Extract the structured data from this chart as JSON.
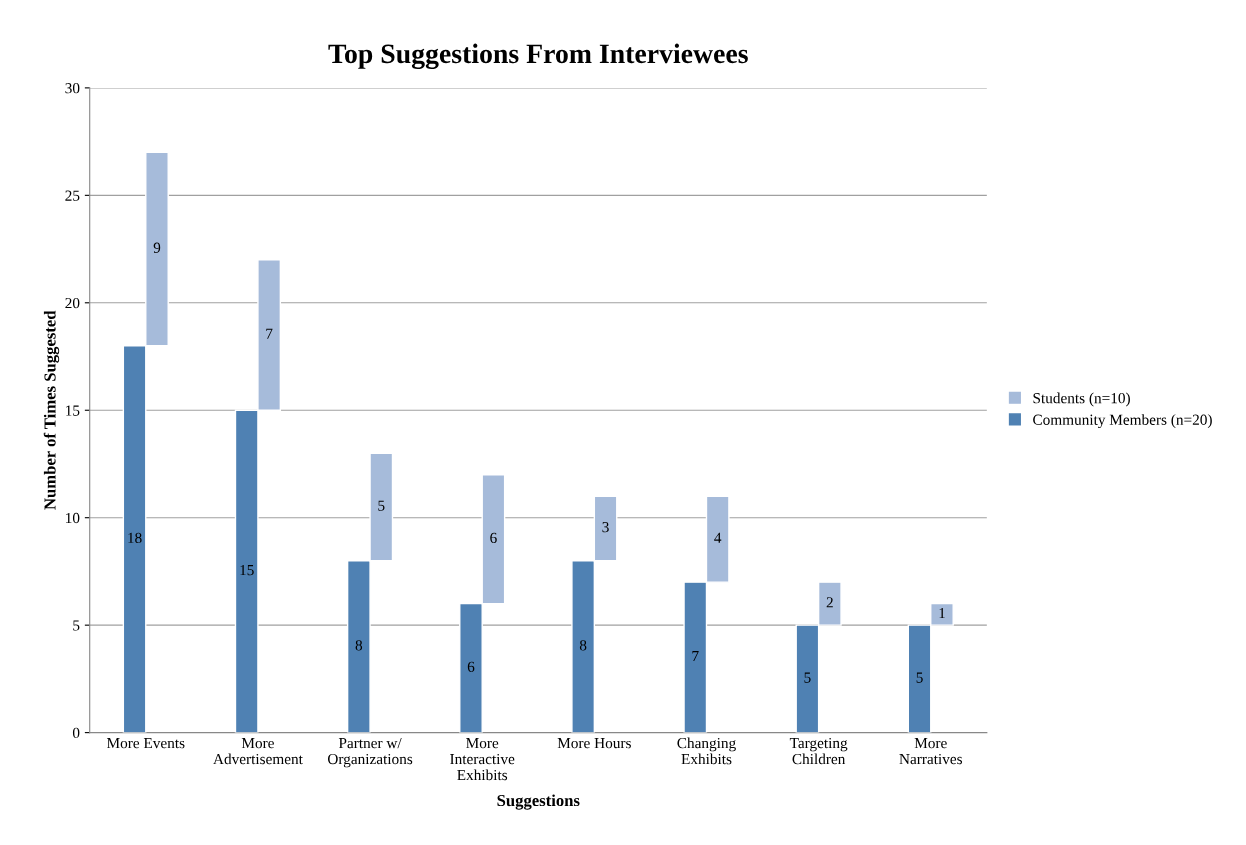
{
  "chart_data": {
    "type": "bar",
    "title": "Top Suggestions From Interviewees",
    "xlabel": "Suggestions",
    "ylabel": "Number of Times Suggested",
    "categories": [
      "More Events",
      "More\nAdvertisement",
      "Partner w/\nOrganizations",
      "More\nInteractive\nExhibits",
      "More Hours",
      "Changing\nExhibits",
      "Targeting\nChildren",
      "More\nNarratives"
    ],
    "series": [
      {
        "name": "Community Members (n=20)",
        "color": "#4f81b3",
        "values": [
          18,
          15,
          8,
          6,
          8,
          7,
          5,
          5
        ]
      },
      {
        "name": "Students (n=10)",
        "color": "#a6bbda",
        "values": [
          9,
          7,
          5,
          6,
          3,
          4,
          2,
          1
        ],
        "base": [
          18,
          15,
          8,
          6,
          8,
          7,
          5,
          5
        ]
      }
    ],
    "ylim": [
      0,
      30
    ],
    "yticks": [
      0,
      5,
      10,
      15,
      20,
      25,
      30
    ],
    "grid": "y",
    "legend": "right",
    "data_labels": true
  }
}
